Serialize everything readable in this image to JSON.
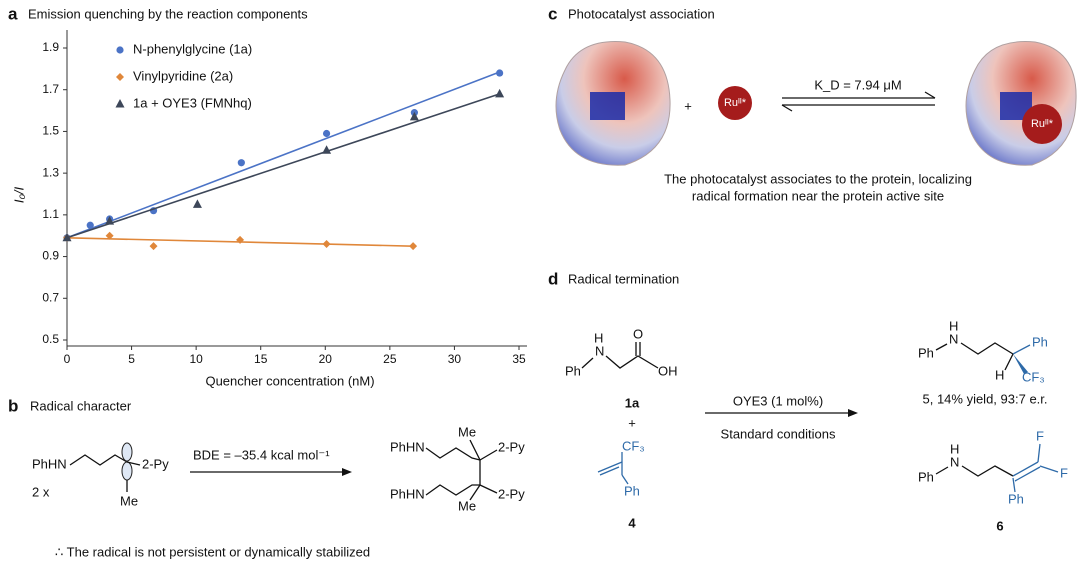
{
  "chart_data": {
    "type": "scatter",
    "panel": "a",
    "title": "Emission quenching by the reaction components",
    "xlabel": "Quencher concentration (nM)",
    "ylabel": "I₀/I",
    "xlim": [
      0,
      35
    ],
    "ylim": [
      0.5,
      1.9
    ],
    "xticks": [
      0,
      5,
      10,
      15,
      20,
      25,
      30,
      35
    ],
    "yticks": [
      0.5,
      0.7,
      0.9,
      1.1,
      1.3,
      1.5,
      1.7,
      1.9
    ],
    "legend": "upper left",
    "series": [
      {
        "name": "N-phenylglycine (1a)",
        "color": "#4b73c6",
        "marker": "circle",
        "x": [
          0,
          1.8,
          3.3,
          6.7,
          13.5,
          20.1,
          26.9,
          33.5
        ],
        "values": [
          0.99,
          1.05,
          1.08,
          1.12,
          1.35,
          1.49,
          1.59,
          1.78
        ],
        "fit": {
          "x": [
            0,
            33.5
          ],
          "values": [
            0.99,
            1.785
          ]
        }
      },
      {
        "name": "Vinylpyridine (2a)",
        "color": "#e0873a",
        "marker": "diamond",
        "x": [
          0,
          3.3,
          6.7,
          13.4,
          20.1,
          26.8
        ],
        "values": [
          0.99,
          1.0,
          0.95,
          0.98,
          0.96,
          0.95
        ],
        "fit": {
          "x": [
            0,
            26.8
          ],
          "values": [
            0.99,
            0.95
          ]
        }
      },
      {
        "name": "1a + OYE3 (FMNhq)",
        "color": "#3d4759",
        "marker": "triangle",
        "x": [
          0,
          3.3,
          10.1,
          20.1,
          26.9,
          33.5
        ],
        "values": [
          0.99,
          1.07,
          1.15,
          1.41,
          1.57,
          1.68
        ],
        "fit": {
          "x": [
            0,
            33.5
          ],
          "values": [
            0.99,
            1.68
          ]
        }
      }
    ]
  },
  "panel_b": {
    "label": "b",
    "title": "Radical character",
    "reactant": {
      "amine": "PhHN",
      "py": "2-Py",
      "me": "Me",
      "count": "2 x"
    },
    "arrow": "BDE = –35.4 kcal mol⁻¹",
    "product": {
      "amine1": "PhHN",
      "me1": "Me",
      "py1": "2-Py",
      "amine2": "PhHN",
      "py2": "2-Py",
      "me2": "Me"
    },
    "note": "∴ The radical is not persistent or dynamically stabilized"
  },
  "panel_c": {
    "label": "c",
    "title": "Photocatalyst association",
    "plus": "+",
    "catalyst": "Ruᴵᴵ*",
    "kd": "K_D = 7.94 μM",
    "bound": "Ruᴵᴵ*",
    "caption": [
      "The photocatalyst associates to the protein, localizing",
      "radical formation near the protein active site"
    ]
  },
  "panel_d": {
    "label": "d",
    "title": "Radical termination",
    "sm1": {
      "ph": "Ph",
      "n": "N",
      "h": "H",
      "o": "O",
      "oh": "OH",
      "id": "1a"
    },
    "plus": "+",
    "sm2": {
      "cf3": "CF₃",
      "ph": "Ph",
      "id": "4"
    },
    "conditions": [
      "OYE3 (1 mol%)",
      "Standard conditions"
    ],
    "p5": {
      "ph": "Ph",
      "n": "N",
      "h": "H",
      "ph2": "Ph",
      "h2": "H",
      "cf3": "CF₃",
      "caption": "5, 14% yield, 93:7 e.r."
    },
    "p6": {
      "ph": "Ph",
      "n": "N",
      "h": "H",
      "f1": "F",
      "f2": "F",
      "ph2": "Ph",
      "id": "6"
    }
  }
}
